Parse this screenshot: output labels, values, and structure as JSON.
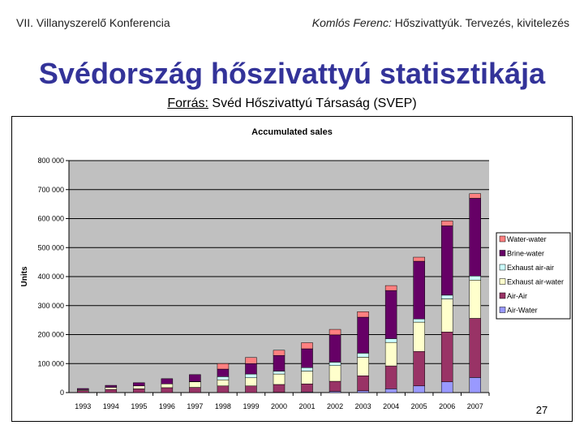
{
  "header": {
    "left": "VII. Villanyszerelő Konferencia",
    "right_author": "Komlós Ferenc:",
    "right_title": " Hőszivattyúk. Tervezés, kivitelezés"
  },
  "slide": {
    "title": "Svédország hőszivattyú statisztikája",
    "source_label": "Forrás:",
    "source_text": " Svéd Hőszivattyú Társaság (SVEP)",
    "page_number": "27"
  },
  "chart_data": {
    "type": "bar",
    "stacked": true,
    "title": "Accumulated sales",
    "ylabel": "Units",
    "xlabel": "",
    "ylim": [
      0,
      800000
    ],
    "yticks": [
      0,
      100000,
      200000,
      300000,
      400000,
      500000,
      600000,
      700000,
      800000
    ],
    "ytick_labels": [
      "0",
      "100 000",
      "200 000",
      "300 000",
      "400 000",
      "500 000",
      "600 000",
      "700 000",
      "800 000"
    ],
    "grid": true,
    "legend_position": "right",
    "plot_background": "#c0c0c0",
    "categories": [
      "1993",
      "1994",
      "1995",
      "1996",
      "1997",
      "1998",
      "1999",
      "2000",
      "2001",
      "2002",
      "2003",
      "2004",
      "2005",
      "2006",
      "2007"
    ],
    "series": [
      {
        "name": "Air-Water",
        "color": "#9999ff",
        "values": [
          0,
          0,
          0,
          0,
          0,
          0,
          0,
          1000,
          2000,
          4000,
          6000,
          13000,
          23000,
          37000,
          52000
        ]
      },
      {
        "name": "Air-Air",
        "color": "#993366",
        "values": [
          7000,
          11000,
          13000,
          17000,
          18000,
          23000,
          23000,
          27000,
          28000,
          35000,
          52000,
          79000,
          119000,
          172000,
          204000
        ]
      },
      {
        "name": "Exhaust air-water",
        "color": "#ffffcc",
        "values": [
          3000,
          7000,
          10000,
          13000,
          19000,
          21000,
          28000,
          36000,
          44000,
          54000,
          64000,
          81000,
          101000,
          114000,
          132000
        ]
      },
      {
        "name": "Exhaust air-air",
        "color": "#ccffff",
        "values": [
          0,
          0,
          0,
          0,
          1000,
          11000,
          13000,
          10000,
          12000,
          12000,
          14000,
          13000,
          11000,
          13000,
          14000
        ]
      },
      {
        "name": "Brine-water",
        "color": "#660066",
        "values": [
          4000,
          7000,
          11000,
          18000,
          24000,
          26000,
          36000,
          54000,
          65000,
          94000,
          124000,
          166000,
          199000,
          239000,
          268000
        ]
      },
      {
        "name": "Water-water",
        "color": "#ff8080",
        "values": [
          0,
          0,
          0,
          0,
          0,
          19000,
          21000,
          18000,
          21000,
          19000,
          19000,
          17000,
          14000,
          17000,
          16000
        ]
      }
    ]
  }
}
